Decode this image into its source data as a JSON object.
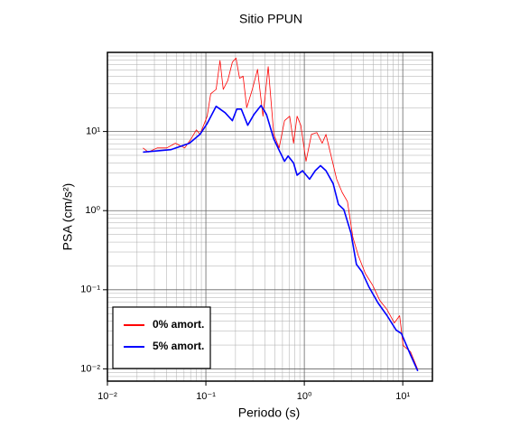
{
  "chart_data": {
    "type": "line",
    "title": "Sitio PPUN",
    "x_label": "Periodo (s)",
    "y_label": "PSA (cm/s²)",
    "log_x": true,
    "log_y": true,
    "grid": true,
    "legend": "lower left",
    "xlim": [
      0.01,
      20
    ],
    "ylim": [
      0.007,
      100
    ],
    "xticks": [
      {
        "value": 0.01,
        "label": "10⁻²"
      },
      {
        "value": 0.1,
        "label": "10⁻¹"
      },
      {
        "value": 1,
        "label": "10⁰"
      },
      {
        "value": 10,
        "label": "10¹"
      }
    ],
    "yticks": [
      {
        "value": 0.01,
        "label": "10⁻²"
      },
      {
        "value": 0.1,
        "label": "10⁻¹"
      },
      {
        "value": 1,
        "label": "10⁰"
      },
      {
        "value": 10,
        "label": "10¹"
      }
    ],
    "series": [
      {
        "name": "0% amort.",
        "color": "#ff0000",
        "width": 0.8,
        "x": [
          0.023,
          0.026,
          0.032,
          0.04,
          0.049,
          0.061,
          0.071,
          0.08,
          0.087,
          0.095,
          0.103,
          0.112,
          0.127,
          0.139,
          0.15,
          0.167,
          0.186,
          0.202,
          0.22,
          0.239,
          0.26,
          0.296,
          0.335,
          0.38,
          0.43,
          0.49,
          0.555,
          0.629,
          0.71,
          0.777,
          0.845,
          0.92,
          1.04,
          1.18,
          1.34,
          1.52,
          1.66,
          1.88,
          2.13,
          2.42,
          2.74,
          3.11,
          3.53,
          4.17,
          4.94,
          5.85,
          6.93,
          8.2,
          9.3,
          10.1,
          12.0,
          14.2
        ],
        "values": [
          6.2,
          5.5,
          6.2,
          6.2,
          7.1,
          6.2,
          8.1,
          10.5,
          9.2,
          12,
          15.6,
          30,
          34,
          79,
          34,
          44,
          75,
          85,
          47,
          50,
          20,
          34,
          61,
          15.6,
          66,
          9.2,
          6.2,
          13.7,
          15.6,
          7.1,
          15.6,
          12,
          4.2,
          9.2,
          9.7,
          7.1,
          9.2,
          4.8,
          2.5,
          1.7,
          1.3,
          0.46,
          0.27,
          0.16,
          0.114,
          0.073,
          0.056,
          0.038,
          0.047,
          0.0197,
          0.0164,
          0.0098
        ]
      },
      {
        "name": "5% amort.",
        "color": "#0000ff",
        "width": 1.6,
        "x": [
          0.023,
          0.044,
          0.068,
          0.087,
          0.103,
          0.127,
          0.157,
          0.186,
          0.206,
          0.229,
          0.266,
          0.308,
          0.364,
          0.413,
          0.489,
          0.555,
          0.629,
          0.685,
          0.777,
          0.845,
          0.958,
          1.13,
          1.29,
          1.46,
          1.66,
          1.96,
          2.22,
          2.52,
          2.98,
          3.38,
          3.84,
          4.54,
          5.61,
          6.93,
          8.55,
          9.7,
          12.0,
          14.2
        ],
        "values": [
          5.5,
          5.9,
          7.1,
          9.2,
          12.6,
          20.8,
          17.3,
          13.7,
          19.2,
          19.2,
          12.0,
          16.4,
          21.3,
          16.4,
          8.1,
          5.8,
          4.2,
          4.9,
          4.0,
          2.8,
          3.2,
          2.5,
          3.2,
          3.7,
          3.2,
          2.2,
          1.2,
          1.03,
          0.52,
          0.21,
          0.17,
          0.108,
          0.068,
          0.047,
          0.031,
          0.028,
          0.015,
          0.0094
        ]
      }
    ]
  }
}
